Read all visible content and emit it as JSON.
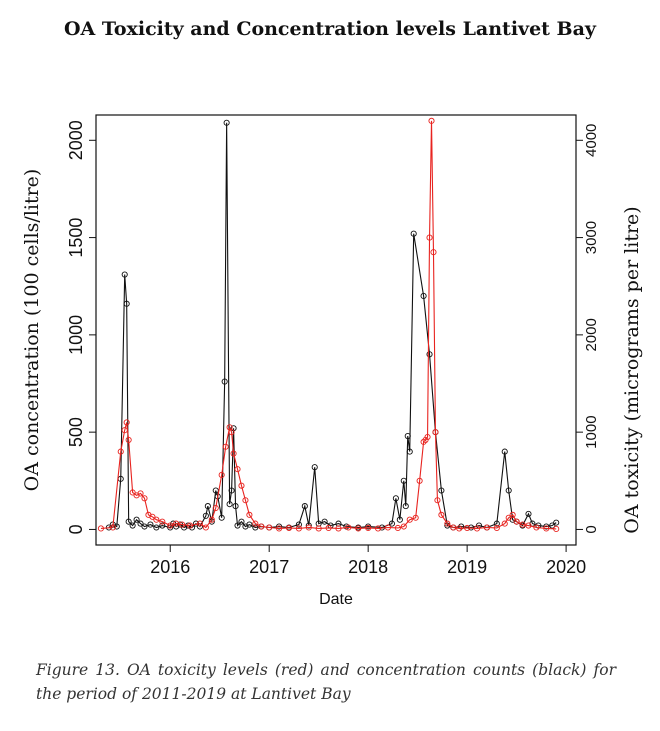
{
  "title": "OA Toxicity and Concentration levels Lantivet Bay",
  "caption": "Figure 13. OA toxicity levels (red) and concentration counts (black) for the period of 2011-2019 at Lantivet Bay",
  "chart_data": {
    "type": "line",
    "xlabel": "Date",
    "ylabel_left": "OA concentration (100 cells/litre)",
    "ylabel_right": "OA toxicity (micrograms per litre)",
    "xlim": [
      2015.25,
      2020.1
    ],
    "ylim_left": [
      -80,
      2130
    ],
    "ylim_right": [
      -160,
      4260
    ],
    "x_ticks": [
      2016,
      2017,
      2018,
      2019,
      2020
    ],
    "y_ticks_left": [
      0,
      500,
      1000,
      1500,
      2000
    ],
    "y_ticks_right": [
      0,
      1000,
      2000,
      3000,
      4000
    ],
    "grid": false,
    "series": [
      {
        "name": "concentration",
        "axis": "left",
        "color": "#111111",
        "points": [
          [
            2015.38,
            10
          ],
          [
            2015.42,
            25
          ],
          [
            2015.46,
            15
          ],
          [
            2015.5,
            260
          ],
          [
            2015.54,
            1310
          ],
          [
            2015.56,
            1160
          ],
          [
            2015.58,
            40
          ],
          [
            2015.62,
            20
          ],
          [
            2015.66,
            50
          ],
          [
            2015.7,
            30
          ],
          [
            2015.74,
            15
          ],
          [
            2015.8,
            25
          ],
          [
            2015.86,
            10
          ],
          [
            2015.92,
            20
          ],
          [
            2016.0,
            10
          ],
          [
            2016.03,
            30
          ],
          [
            2016.06,
            15
          ],
          [
            2016.1,
            25
          ],
          [
            2016.14,
            10
          ],
          [
            2016.18,
            20
          ],
          [
            2016.22,
            10
          ],
          [
            2016.26,
            30
          ],
          [
            2016.3,
            15
          ],
          [
            2016.36,
            70
          ],
          [
            2016.38,
            120
          ],
          [
            2016.42,
            40
          ],
          [
            2016.46,
            200
          ],
          [
            2016.48,
            170
          ],
          [
            2016.52,
            60
          ],
          [
            2016.55,
            760
          ],
          [
            2016.57,
            2090
          ],
          [
            2016.6,
            130
          ],
          [
            2016.62,
            200
          ],
          [
            2016.64,
            520
          ],
          [
            2016.66,
            120
          ],
          [
            2016.68,
            20
          ],
          [
            2016.72,
            40
          ],
          [
            2016.76,
            15
          ],
          [
            2016.8,
            25
          ],
          [
            2016.86,
            10
          ],
          [
            2016.92,
            15
          ],
          [
            2017.0,
            10
          ],
          [
            2017.1,
            15
          ],
          [
            2017.2,
            10
          ],
          [
            2017.3,
            25
          ],
          [
            2017.36,
            120
          ],
          [
            2017.4,
            20
          ],
          [
            2017.46,
            320
          ],
          [
            2017.5,
            30
          ],
          [
            2017.56,
            40
          ],
          [
            2017.62,
            20
          ],
          [
            2017.7,
            30
          ],
          [
            2017.78,
            15
          ],
          [
            2017.9,
            10
          ],
          [
            2018.0,
            15
          ],
          [
            2018.14,
            10
          ],
          [
            2018.24,
            30
          ],
          [
            2018.28,
            160
          ],
          [
            2018.32,
            50
          ],
          [
            2018.36,
            250
          ],
          [
            2018.38,
            120
          ],
          [
            2018.4,
            480
          ],
          [
            2018.42,
            400
          ],
          [
            2018.46,
            1520
          ],
          [
            2018.56,
            1200
          ],
          [
            2018.62,
            900
          ],
          [
            2018.68,
            500
          ],
          [
            2018.74,
            200
          ],
          [
            2018.8,
            20
          ],
          [
            2018.86,
            10
          ],
          [
            2018.94,
            15
          ],
          [
            2019.04,
            10
          ],
          [
            2019.12,
            20
          ],
          [
            2019.2,
            10
          ],
          [
            2019.3,
            30
          ],
          [
            2019.38,
            400
          ],
          [
            2019.42,
            200
          ],
          [
            2019.46,
            50
          ],
          [
            2019.5,
            40
          ],
          [
            2019.56,
            20
          ],
          [
            2019.62,
            80
          ],
          [
            2019.66,
            30
          ],
          [
            2019.72,
            20
          ],
          [
            2019.8,
            15
          ],
          [
            2019.86,
            20
          ],
          [
            2019.9,
            35
          ]
        ]
      },
      {
        "name": "toxicity",
        "axis": "right",
        "color": "#e8231f",
        "points": [
          [
            2015.3,
            10
          ],
          [
            2015.42,
            20
          ],
          [
            2015.5,
            800
          ],
          [
            2015.54,
            1020
          ],
          [
            2015.56,
            1100
          ],
          [
            2015.58,
            920
          ],
          [
            2015.62,
            380
          ],
          [
            2015.66,
            350
          ],
          [
            2015.7,
            370
          ],
          [
            2015.74,
            320
          ],
          [
            2015.78,
            150
          ],
          [
            2015.82,
            130
          ],
          [
            2015.86,
            100
          ],
          [
            2015.92,
            80
          ],
          [
            2016.0,
            40
          ],
          [
            2016.06,
            60
          ],
          [
            2016.12,
            50
          ],
          [
            2016.2,
            40
          ],
          [
            2016.3,
            60
          ],
          [
            2016.36,
            20
          ],
          [
            2016.42,
            100
          ],
          [
            2016.46,
            220
          ],
          [
            2016.52,
            560
          ],
          [
            2016.56,
            850
          ],
          [
            2016.6,
            1050
          ],
          [
            2016.62,
            1000
          ],
          [
            2016.64,
            780
          ],
          [
            2016.68,
            620
          ],
          [
            2016.72,
            450
          ],
          [
            2016.76,
            300
          ],
          [
            2016.8,
            150
          ],
          [
            2016.86,
            60
          ],
          [
            2016.92,
            30
          ],
          [
            2017.0,
            20
          ],
          [
            2017.1,
            10
          ],
          [
            2017.2,
            15
          ],
          [
            2017.3,
            10
          ],
          [
            2017.4,
            20
          ],
          [
            2017.5,
            10
          ],
          [
            2017.6,
            15
          ],
          [
            2017.7,
            10
          ],
          [
            2017.8,
            20
          ],
          [
            2017.9,
            10
          ],
          [
            2018.0,
            15
          ],
          [
            2018.1,
            10
          ],
          [
            2018.2,
            20
          ],
          [
            2018.3,
            15
          ],
          [
            2018.36,
            30
          ],
          [
            2018.42,
            100
          ],
          [
            2018.48,
            120
          ],
          [
            2018.52,
            500
          ],
          [
            2018.56,
            900
          ],
          [
            2018.58,
            920
          ],
          [
            2018.6,
            950
          ],
          [
            2018.62,
            3000
          ],
          [
            2018.64,
            4200
          ],
          [
            2018.66,
            2850
          ],
          [
            2018.68,
            1000
          ],
          [
            2018.7,
            300
          ],
          [
            2018.74,
            150
          ],
          [
            2018.8,
            60
          ],
          [
            2018.86,
            20
          ],
          [
            2018.92,
            10
          ],
          [
            2019.0,
            15
          ],
          [
            2019.1,
            10
          ],
          [
            2019.2,
            20
          ],
          [
            2019.3,
            15
          ],
          [
            2019.38,
            60
          ],
          [
            2019.42,
            120
          ],
          [
            2019.46,
            150
          ],
          [
            2019.5,
            80
          ],
          [
            2019.56,
            50
          ],
          [
            2019.62,
            40
          ],
          [
            2019.7,
            20
          ],
          [
            2019.8,
            10
          ],
          [
            2019.9,
            5
          ]
        ]
      }
    ]
  }
}
